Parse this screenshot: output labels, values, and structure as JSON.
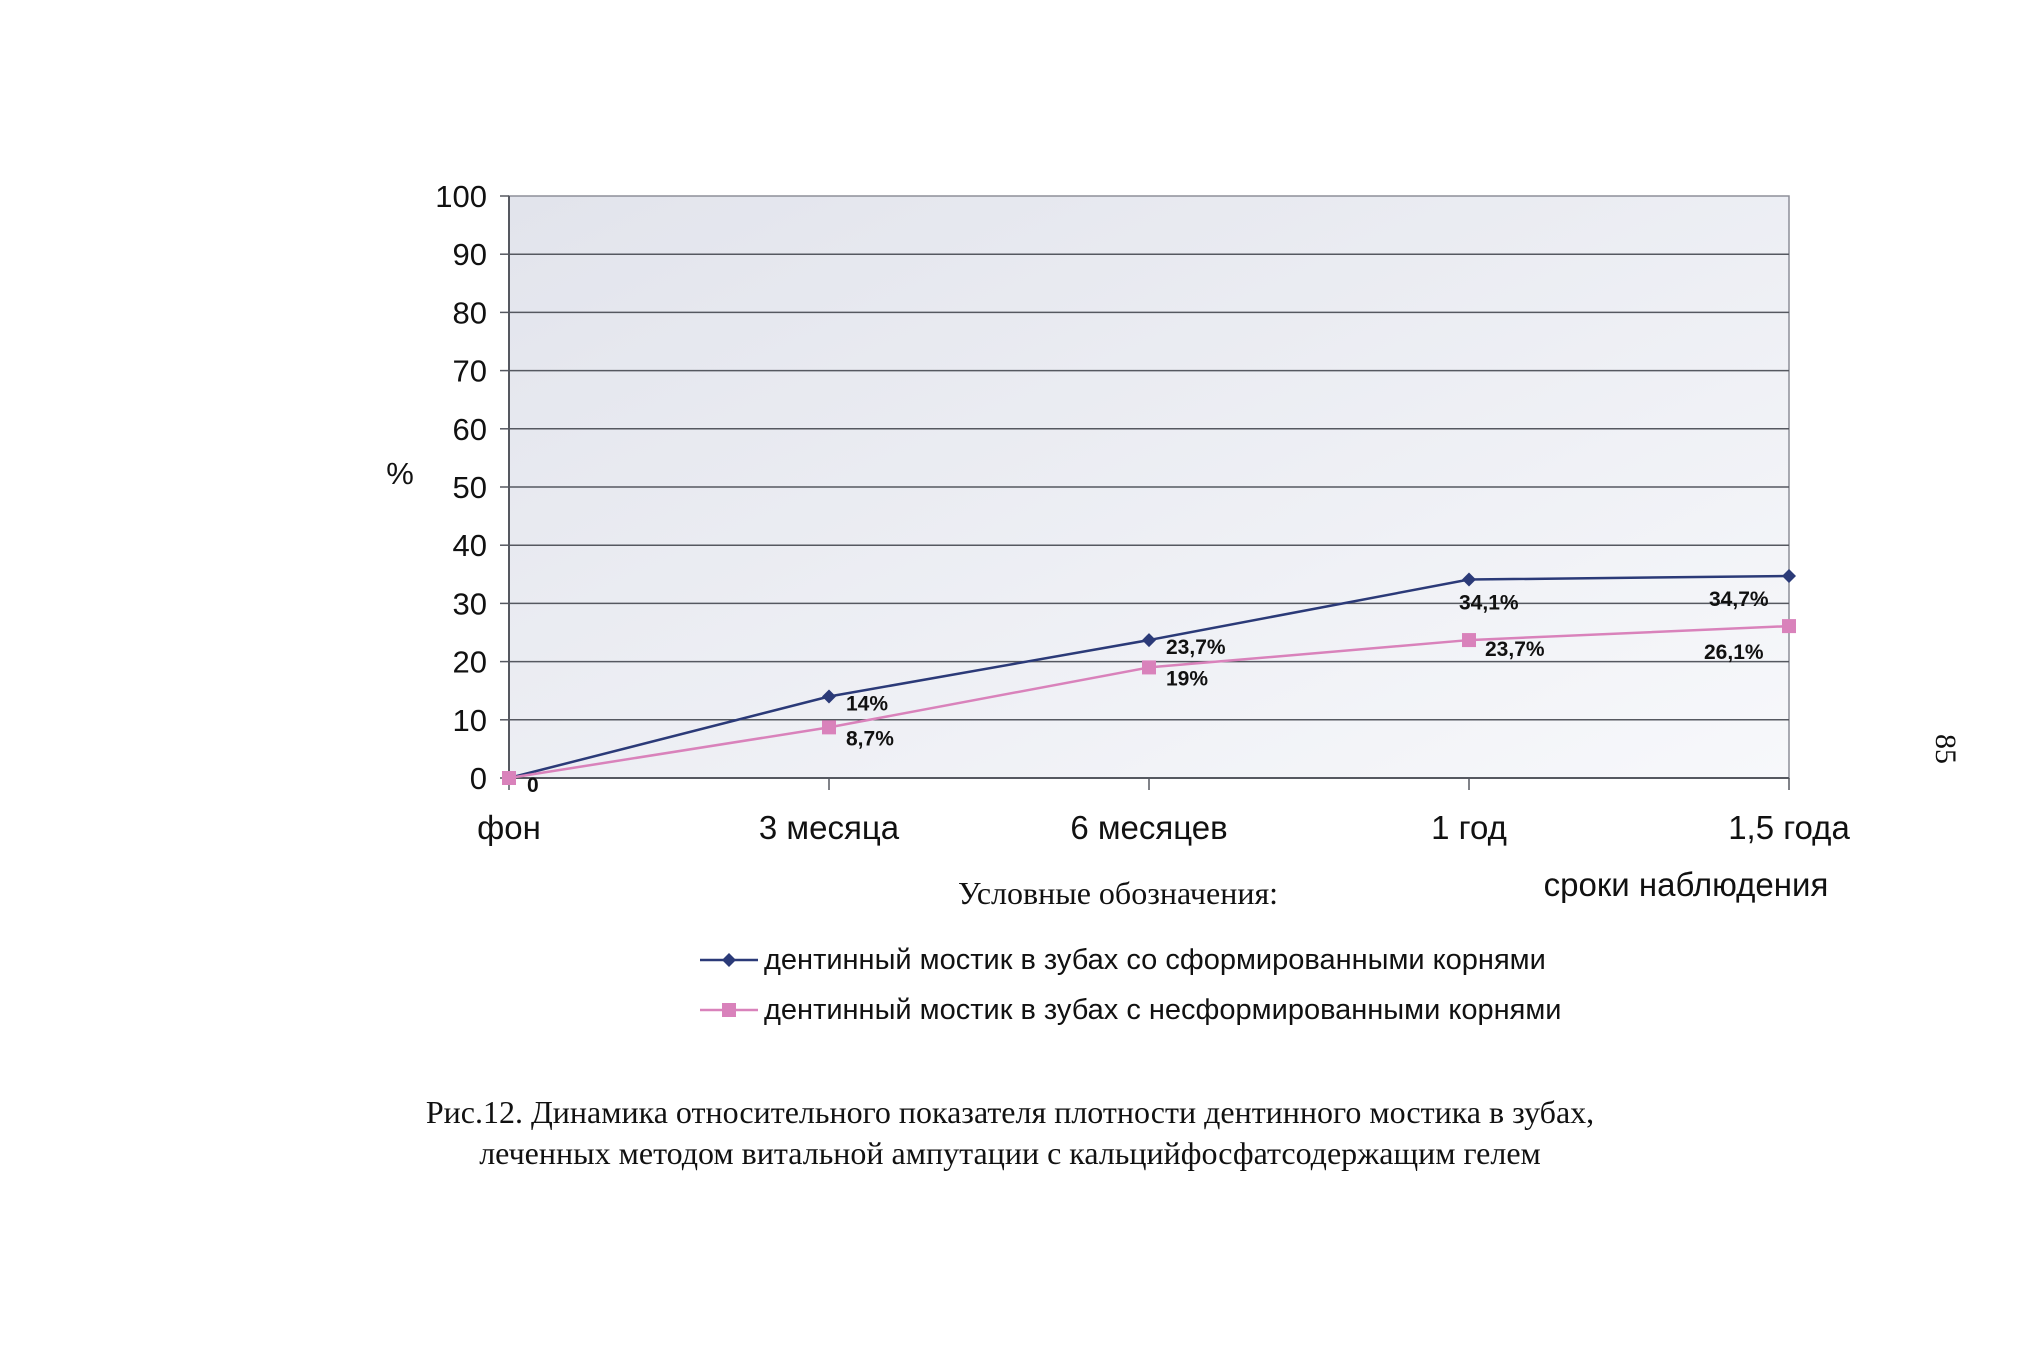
{
  "chart_data": {
    "type": "line",
    "categories": [
      "фон",
      "3 месяца",
      "6 месяцев",
      "1 год",
      "1,5 года"
    ],
    "ylim": [
      0,
      100
    ],
    "yticks": [
      0,
      10,
      20,
      30,
      40,
      50,
      60,
      70,
      80,
      90,
      100
    ],
    "ylabel": "%",
    "xlabel": "сроки наблюдения",
    "grid": true,
    "series": [
      {
        "name": "дентинный мостик в зубах со сформированными корнями",
        "color": "#2b3a78",
        "marker": "diamond",
        "values": [
          0,
          14,
          23.7,
          34.1,
          34.7
        ],
        "labels": [
          "0",
          "14%",
          "23,7%",
          "34,1%",
          "34,7%"
        ]
      },
      {
        "name": "дентинный мостик в зубах с несформированными корнями",
        "color": "#d982bb",
        "marker": "square",
        "values": [
          0,
          8.7,
          19,
          23.7,
          26.1
        ],
        "labels": [
          "",
          "8,7%",
          "19%",
          "23,7%",
          "26,1%"
        ]
      }
    ]
  },
  "legend": {
    "caption": "Условные обозначения:"
  },
  "figure": {
    "caption_line1": "Рис.12.  Динамика относительного показателя плотности дентинного мостика в зубах,",
    "caption_line2": "леченных методом витальной ампутации с кальцийфосфатсодержащим гелем"
  },
  "page_number": "85"
}
